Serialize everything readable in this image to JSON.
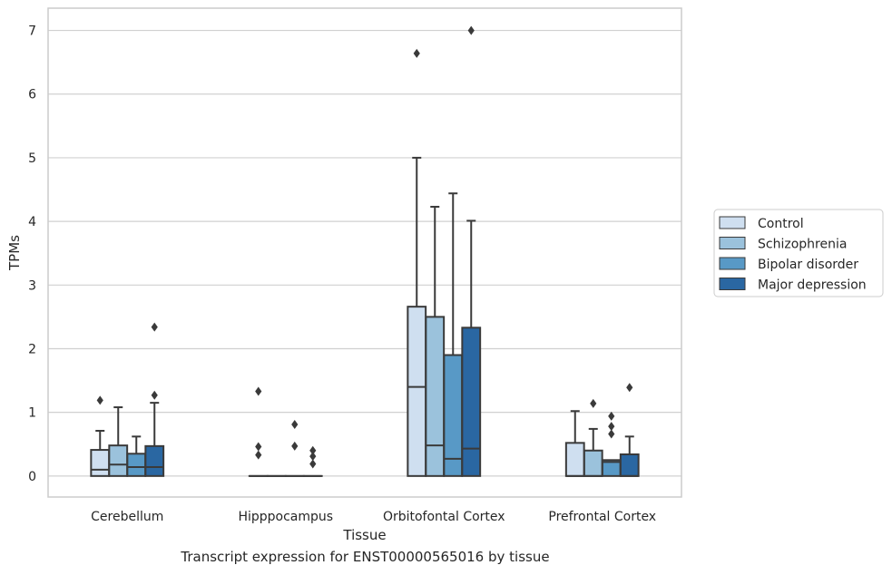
{
  "caption": "Transcript expression for ENST00000565016 by tissue",
  "chart_data": {
    "type": "boxplot",
    "xlabel": "Tissue",
    "ylabel": "TPMs",
    "ylim": [
      -0.33,
      7.35
    ],
    "yticks": [
      0,
      1,
      2,
      3,
      4,
      5,
      6,
      7
    ],
    "grid": true,
    "legend_position": "right",
    "categories": [
      "Cerebellum",
      "Hipppocampus",
      "Orbitofontal Cortex",
      "Prefrontal Cortex"
    ],
    "series": [
      {
        "name": "Control",
        "color": "#cfdff0",
        "boxes": [
          {
            "whislo": 0,
            "q1": 0,
            "med": 0.1,
            "q3": 0.41,
            "whishi": 0.71,
            "fliers": [
              1.19
            ]
          },
          {
            "whislo": 0,
            "q1": 0,
            "med": 0,
            "q3": 0,
            "whishi": 0,
            "fliers": [
              1.33,
              0.46,
              0.33
            ]
          },
          {
            "whislo": 0,
            "q1": 0,
            "med": 1.4,
            "q3": 2.66,
            "whishi": 5.0,
            "fliers": [
              6.64
            ]
          },
          {
            "whislo": 0,
            "q1": 0,
            "med": 0,
            "q3": 0.52,
            "whishi": 1.02,
            "fliers": []
          }
        ]
      },
      {
        "name": "Schizophrenia",
        "color": "#9bc2dc",
        "boxes": [
          {
            "whislo": 0,
            "q1": 0,
            "med": 0.18,
            "q3": 0.48,
            "whishi": 1.08,
            "fliers": []
          },
          {
            "whislo": 0,
            "q1": 0,
            "med": 0,
            "q3": 0,
            "whishi": 0,
            "fliers": []
          },
          {
            "whislo": 0,
            "q1": 0,
            "med": 0.48,
            "q3": 2.5,
            "whishi": 4.23,
            "fliers": []
          },
          {
            "whislo": 0,
            "q1": 0,
            "med": 0,
            "q3": 0.4,
            "whishi": 0.74,
            "fliers": [
              1.14
            ]
          }
        ]
      },
      {
        "name": "Bipolar disorder",
        "color": "#5899c6",
        "boxes": [
          {
            "whislo": 0,
            "q1": 0,
            "med": 0.14,
            "q3": 0.35,
            "whishi": 0.62,
            "fliers": []
          },
          {
            "whislo": 0,
            "q1": 0,
            "med": 0,
            "q3": 0,
            "whishi": 0,
            "fliers": [
              0.81,
              0.47
            ]
          },
          {
            "whislo": 0,
            "q1": 0,
            "med": 0.27,
            "q3": 1.9,
            "whishi": 4.44,
            "fliers": []
          },
          {
            "whislo": 0,
            "q1": 0,
            "med": 0.22,
            "q3": 0.25,
            "whishi": 0.25,
            "fliers": [
              0.94,
              0.78,
              0.66
            ]
          }
        ]
      },
      {
        "name": "Major depression",
        "color": "#2a67a2",
        "boxes": [
          {
            "whislo": 0,
            "q1": 0,
            "med": 0.14,
            "q3": 0.47,
            "whishi": 1.15,
            "fliers": [
              2.34,
              1.27
            ]
          },
          {
            "whislo": 0,
            "q1": 0,
            "med": 0,
            "q3": 0,
            "whishi": 0,
            "fliers": [
              0.4,
              0.31,
              0.19
            ]
          },
          {
            "whislo": 0,
            "q1": 0,
            "med": 0.43,
            "q3": 2.33,
            "whishi": 4.01,
            "fliers": [
              7.0
            ]
          },
          {
            "whislo": 0,
            "q1": 0,
            "med": 0,
            "q3": 0.34,
            "whishi": 0.62,
            "fliers": [
              1.39
            ]
          }
        ]
      }
    ]
  }
}
